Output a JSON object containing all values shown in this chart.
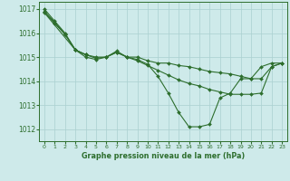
{
  "title": "Graphe pression niveau de la mer (hPa)",
  "background_color": "#ceeaea",
  "grid_color": "#aad0d0",
  "line_color": "#2d6e2d",
  "marker_color": "#2d6e2d",
  "xlim": [
    -0.5,
    23.5
  ],
  "ylim": [
    1011.5,
    1017.3
  ],
  "yticks": [
    1012,
    1013,
    1014,
    1015,
    1016,
    1017
  ],
  "xticks": [
    0,
    1,
    2,
    3,
    4,
    5,
    6,
    7,
    8,
    9,
    10,
    11,
    12,
    13,
    14,
    15,
    16,
    17,
    18,
    19,
    20,
    21,
    22,
    23
  ],
  "series": [
    [
      1017.0,
      1016.5,
      1016.0,
      1015.3,
      1015.0,
      1014.9,
      1015.0,
      1015.2,
      1015.0,
      1014.9,
      1014.7,
      1014.2,
      1013.5,
      1012.7,
      1012.1,
      1012.1,
      1012.2,
      1013.3,
      1013.5,
      1014.1,
      1014.1,
      1014.6,
      1014.75,
      1014.75
    ],
    [
      1016.9,
      1016.45,
      1015.95,
      1015.3,
      1015.1,
      1014.95,
      1015.0,
      1015.25,
      1015.0,
      1014.85,
      1014.65,
      1014.45,
      1014.25,
      1014.05,
      1013.9,
      1013.8,
      1013.65,
      1013.55,
      1013.45,
      1013.45,
      1013.45,
      1013.5,
      1014.6,
      1014.75
    ],
    [
      1016.9,
      1016.4,
      1015.95,
      1015.3,
      1015.1,
      1015.0,
      1015.0,
      1015.2,
      1015.0,
      1015.0,
      1014.85,
      1014.75,
      1014.75,
      1014.65,
      1014.6,
      1014.5,
      1014.4,
      1014.35,
      1014.3,
      1014.2,
      1014.1,
      1014.1,
      1014.6,
      1014.75
    ],
    [
      1016.85,
      null,
      null,
      1015.3,
      1015.1,
      null,
      null,
      null,
      null,
      null,
      null,
      null,
      null,
      null,
      null,
      null,
      null,
      null,
      null,
      null,
      null,
      null,
      null,
      null
    ]
  ]
}
